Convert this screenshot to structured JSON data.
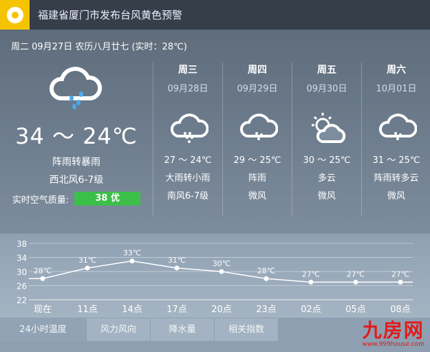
{
  "header": {
    "title": "福建省厦门市发布台风黄色预警",
    "icon": "typhoon-icon",
    "accent": "#f5c400"
  },
  "today": {
    "date": "周二 09月27日 农历八月廿七 (实时：28℃)",
    "temp": "34 ～ 24℃",
    "weather": "阵雨转暴雨",
    "wind": "西北风6-7级",
    "aq_label": "实时空气质量:",
    "aq_value": "38 优",
    "aq_color": "#3cbf49",
    "icon": "rain-cloud-icon"
  },
  "forecast": [
    {
      "name": "周三",
      "date": "09月28日",
      "temp": "27 ～ 24℃",
      "weather": "大雨转小雨",
      "wind": "南风6-7级",
      "icon": "rain-icon"
    },
    {
      "name": "周四",
      "date": "09月29日",
      "temp": "29 ～ 25℃",
      "weather": "阵雨",
      "wind": "微风",
      "icon": "shower-icon"
    },
    {
      "name": "周五",
      "date": "09月30日",
      "temp": "30 ～ 25℃",
      "weather": "多云",
      "wind": "微风",
      "icon": "partly-cloudy-icon"
    },
    {
      "name": "周六",
      "date": "10月01日",
      "temp": "31 ～ 25℃",
      "weather": "阵雨转多云",
      "wind": "微风",
      "icon": "shower-icon"
    }
  ],
  "chart_data": {
    "type": "line",
    "categories": [
      "现在",
      "11点",
      "14点",
      "17点",
      "20点",
      "23点",
      "02点",
      "05点",
      "08点"
    ],
    "values": [
      28,
      31,
      33,
      31,
      30,
      28,
      27,
      27,
      27
    ],
    "labels": [
      "28℃",
      "31℃",
      "33℃",
      "31℃",
      "30℃",
      "28℃",
      "27℃",
      "27℃",
      "27℃"
    ],
    "yticks": [
      38,
      34,
      30,
      26,
      22
    ],
    "ylim": [
      22,
      38
    ],
    "grid": true
  },
  "tabs": [
    "24小时温度",
    "风力风向",
    "降水量",
    "相关指数"
  ],
  "logo": {
    "text": "九房网",
    "url_text": "www.999house.com"
  }
}
